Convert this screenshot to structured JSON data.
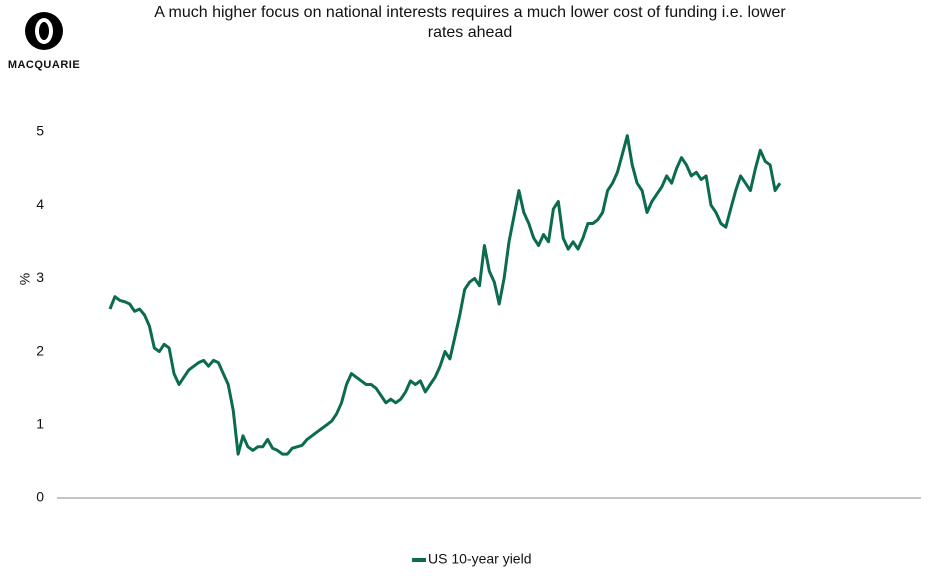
{
  "logo": "MACQUARIE",
  "chart_data": {
    "type": "line",
    "title": "A much higher focus on national interests requires a much lower cost of funding i.e. lower rates ahead",
    "y_label": "%",
    "ylim": [
      0,
      5
    ],
    "yticks": [
      0,
      1,
      2,
      3,
      4,
      5
    ],
    "grid": false,
    "legend": "bottom",
    "series": [
      {
        "name": "US 10-year yield",
        "color": "#0b6b4e",
        "values": [
          2.58,
          2.75,
          2.7,
          2.68,
          2.65,
          2.55,
          2.58,
          2.5,
          2.35,
          2.05,
          2.0,
          2.1,
          2.05,
          1.7,
          1.55,
          1.65,
          1.75,
          1.8,
          1.85,
          1.88,
          1.8,
          1.88,
          1.85,
          1.7,
          1.55,
          1.2,
          0.6,
          0.85,
          0.7,
          0.65,
          0.7,
          0.7,
          0.8,
          0.68,
          0.65,
          0.6,
          0.6,
          0.68,
          0.7,
          0.72,
          0.8,
          0.85,
          0.9,
          0.95,
          1.0,
          1.05,
          1.15,
          1.3,
          1.55,
          1.7,
          1.65,
          1.6,
          1.55,
          1.55,
          1.5,
          1.4,
          1.3,
          1.35,
          1.3,
          1.35,
          1.45,
          1.6,
          1.55,
          1.6,
          1.45,
          1.55,
          1.65,
          1.8,
          2.0,
          1.9,
          2.2,
          2.5,
          2.85,
          2.95,
          3.0,
          2.9,
          3.45,
          3.1,
          2.95,
          2.65,
          3.0,
          3.5,
          3.85,
          4.2,
          3.9,
          3.75,
          3.55,
          3.45,
          3.6,
          3.5,
          3.95,
          4.05,
          3.55,
          3.4,
          3.5,
          3.4,
          3.55,
          3.75,
          3.75,
          3.8,
          3.9,
          4.2,
          4.3,
          4.45,
          4.7,
          4.95,
          4.55,
          4.3,
          4.2,
          3.9,
          4.05,
          4.15,
          4.25,
          4.4,
          4.3,
          4.5,
          4.65,
          4.55,
          4.4,
          4.45,
          4.35,
          4.4,
          4.0,
          3.9,
          3.75,
          3.7,
          3.95,
          4.2,
          4.4,
          4.3,
          4.2,
          4.5,
          4.75,
          4.6,
          4.55,
          4.2,
          4.3
        ]
      }
    ]
  }
}
